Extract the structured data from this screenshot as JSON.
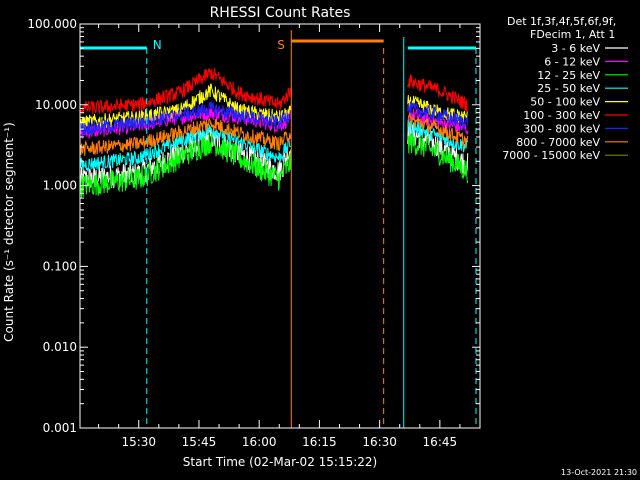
{
  "chart_data": {
    "type": "line",
    "title": "RHESSI Count Rates",
    "xlabel": "Start Time (02-Mar-02 15:15:22)",
    "ylabel": "Count Rate (s⁻¹ detector segment⁻¹)",
    "xlim": [
      "15:15:22",
      "16:55:00"
    ],
    "ylim": [
      0.001,
      100
    ],
    "y_scale": "log",
    "x_ticks": [
      "15:30",
      "15:45",
      "16:00",
      "16:15",
      "16:30",
      "16:45"
    ],
    "y_ticks": [
      "100.000",
      "10.000",
      "1.000",
      "0.100",
      "0.010",
      "0.001"
    ],
    "legend_header": [
      "Det 1f,3f,4f,5f,6f,9f,",
      "FDecim 1, Att 1"
    ],
    "legend_position": "right",
    "series": [
      {
        "name": "3 - 6 keV",
        "color": "#ffffff",
        "segments": [
          {
            "t": [
              "15:15:22",
              "15:30",
              "15:40",
              "15:48",
              "15:55",
              "16:05",
              "16:08"
            ],
            "v": [
              1.2,
              1.4,
              2.5,
              4.0,
              2.5,
              1.5,
              3.0
            ]
          },
          {
            "t": [
              "16:37",
              "16:40",
              "16:45",
              "16:52"
            ],
            "v": [
              4.5,
              4.0,
              3.0,
              1.8
            ]
          }
        ]
      },
      {
        "name": "6 - 12 keV",
        "color": "#ff00ff",
        "segments": [
          {
            "t": [
              "15:15:22",
              "15:30",
              "15:40",
              "15:48",
              "15:55",
              "16:05",
              "16:08"
            ],
            "v": [
              4.5,
              5.5,
              7.0,
              8.0,
              7.0,
              5.5,
              7.0
            ]
          },
          {
            "t": [
              "16:37",
              "16:40",
              "16:45",
              "16:52"
            ],
            "v": [
              8.0,
              7.0,
              6.0,
              5.0
            ]
          }
        ]
      },
      {
        "name": "12 - 25 keV",
        "color": "#00ff00",
        "segments": [
          {
            "t": [
              "15:15:22",
              "15:30",
              "15:40",
              "15:48",
              "15:55",
              "16:05",
              "16:08"
            ],
            "v": [
              1.0,
              1.2,
              2.2,
              3.5,
              2.2,
              1.2,
              2.0
            ]
          },
          {
            "t": [
              "16:37",
              "16:40",
              "16:45",
              "16:52"
            ],
            "v": [
              3.5,
              3.2,
              2.5,
              1.5
            ]
          }
        ]
      },
      {
        "name": "25 - 50 keV",
        "color": "#00ffff",
        "segments": [
          {
            "t": [
              "15:15:22",
              "15:30",
              "15:40",
              "15:48",
              "15:55",
              "16:05",
              "16:08"
            ],
            "v": [
              1.8,
              2.2,
              3.5,
              5.0,
              3.5,
              2.2,
              3.5
            ]
          },
          {
            "t": [
              "16:37",
              "16:40",
              "16:45",
              "16:52"
            ],
            "v": [
              5.5,
              5.0,
              4.0,
              3.0
            ]
          }
        ]
      },
      {
        "name": "50 - 100 keV",
        "color": "#ffff00",
        "segments": [
          {
            "t": [
              "15:15:22",
              "15:30",
              "15:40",
              "15:48",
              "15:55",
              "16:05",
              "16:08"
            ],
            "v": [
              6.0,
              7.0,
              8.5,
              15.0,
              8.5,
              7.0,
              8.0
            ]
          },
          {
            "t": [
              "16:37",
              "16:40",
              "16:45",
              "16:52"
            ],
            "v": [
              11.0,
              10.0,
              8.0,
              7.0
            ]
          }
        ]
      },
      {
        "name": "100 - 300 keV",
        "color": "#ff0000",
        "segments": [
          {
            "t": [
              "15:15:22",
              "15:30",
              "15:40",
              "15:48",
              "15:55",
              "16:05",
              "16:08"
            ],
            "v": [
              9.0,
              10.0,
              14.0,
              25.0,
              14.0,
              10.0,
              15.0
            ]
          },
          {
            "t": [
              "16:37",
              "16:40",
              "16:45",
              "16:52"
            ],
            "v": [
              20.0,
              18.0,
              15.0,
              10.0
            ]
          }
        ]
      },
      {
        "name": "300 - 800 keV",
        "color": "#2222ff",
        "segments": [
          {
            "t": [
              "15:15:22",
              "15:30",
              "15:40",
              "15:48",
              "15:55",
              "16:05",
              "16:08"
            ],
            "v": [
              5.0,
              6.0,
              7.5,
              9.0,
              7.5,
              6.0,
              8.0
            ]
          },
          {
            "t": [
              "16:37",
              "16:40",
              "16:45",
              "16:52"
            ],
            "v": [
              9.0,
              8.5,
              7.5,
              6.0
            ]
          }
        ]
      },
      {
        "name": "800 - 7000 keV",
        "color": "#ff8000",
        "segments": [
          {
            "t": [
              "15:15:22",
              "15:30",
              "15:40",
              "15:48",
              "15:55",
              "16:05",
              "16:08"
            ],
            "v": [
              2.8,
              3.3,
              4.5,
              6.0,
              4.5,
              3.3,
              4.5
            ]
          },
          {
            "t": [
              "16:37",
              "16:40",
              "16:45",
              "16:52"
            ],
            "v": [
              6.5,
              6.0,
              5.0,
              3.5
            ]
          }
        ]
      },
      {
        "name": "7000 - 15000 keV",
        "color": "#808000",
        "segments": []
      }
    ],
    "annotations": [
      {
        "label": "N",
        "color": "#00ffff",
        "bars": [
          [
            "15:15:22",
            "15:32"
          ],
          [
            "16:37",
            "16:54"
          ]
        ],
        "dashed_lines": [
          "15:32",
          "16:54"
        ],
        "solid_lines": [
          "16:36"
        ]
      },
      {
        "label": "S",
        "color": "#ff8000",
        "bars": [
          [
            "16:08",
            "16:31"
          ]
        ],
        "dashed_lines": [
          "16:31"
        ],
        "solid_lines": [
          "16:08"
        ]
      }
    ]
  },
  "footer_stamp": "13-Oct-2021 21:30"
}
